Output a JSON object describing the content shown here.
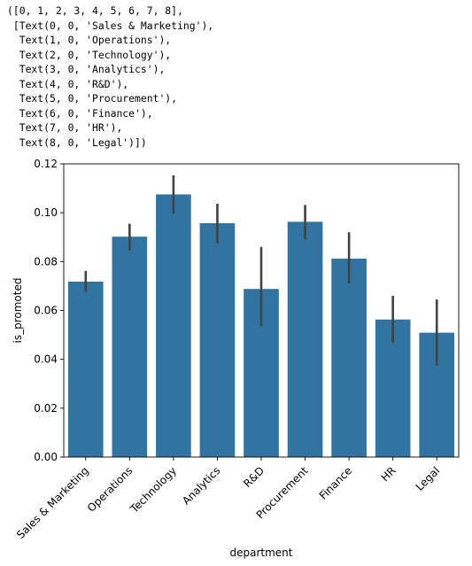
{
  "console_output": "([0, 1, 2, 3, 4, 5, 6, 7, 8],\n [Text(0, 0, 'Sales & Marketing'),\n  Text(1, 0, 'Operations'),\n  Text(2, 0, 'Technology'),\n  Text(3, 0, 'Analytics'),\n  Text(4, 0, 'R&D'),\n  Text(5, 0, 'Procurement'),\n  Text(6, 0, 'Finance'),\n  Text(7, 0, 'HR'),\n  Text(8, 0, 'Legal')])",
  "chart_data": {
    "type": "bar",
    "xlabel": "department",
    "ylabel": "is_promoted",
    "categories": [
      "Sales & Marketing",
      "Operations",
      "Technology",
      "Analytics",
      "R&D",
      "Procurement",
      "Finance",
      "HR",
      "Legal"
    ],
    "values": [
      0.0718,
      0.0902,
      0.1075,
      0.0957,
      0.0688,
      0.0963,
      0.0812,
      0.0563,
      0.0509
    ],
    "ci_low": [
      0.0676,
      0.0845,
      0.0996,
      0.0875,
      0.0535,
      0.089,
      0.071,
      0.0468,
      0.0375
    ],
    "ci_high": [
      0.0762,
      0.0955,
      0.1153,
      0.1037,
      0.086,
      0.1032,
      0.092,
      0.066,
      0.0645
    ],
    "ylim": [
      0,
      0.12
    ],
    "yticks": [
      "0.00",
      "0.02",
      "0.04",
      "0.06",
      "0.08",
      "0.10",
      "0.12"
    ],
    "bar_color": "#3274a1",
    "errorbar_color": "#424242",
    "grid": false,
    "legend": "none"
  }
}
